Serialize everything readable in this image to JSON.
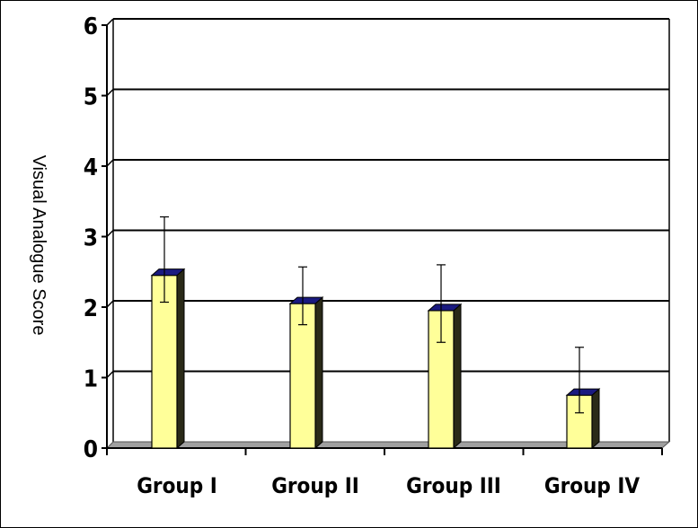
{
  "chart_data": {
    "type": "bar",
    "title": "",
    "xlabel": "",
    "ylabel": "Visual Analogue Score",
    "ylim": [
      0,
      6
    ],
    "yticks": [
      0,
      1,
      2,
      3,
      4,
      5,
      6
    ],
    "grid": true,
    "style": "3d",
    "categories": [
      "Group I",
      "Group II",
      "Group III",
      "Group IV"
    ],
    "values": [
      2.45,
      2.05,
      1.95,
      0.75
    ],
    "error_low": [
      2.07,
      1.75,
      1.5,
      0.5
    ],
    "error_high": [
      3.28,
      2.57,
      2.6,
      1.43
    ]
  },
  "colors": {
    "bar_front": "#ffff99",
    "bar_side": "#2a2a18",
    "bar_top": "#1a1a80",
    "floor": "#a0a0a0",
    "grid": "#000000"
  }
}
